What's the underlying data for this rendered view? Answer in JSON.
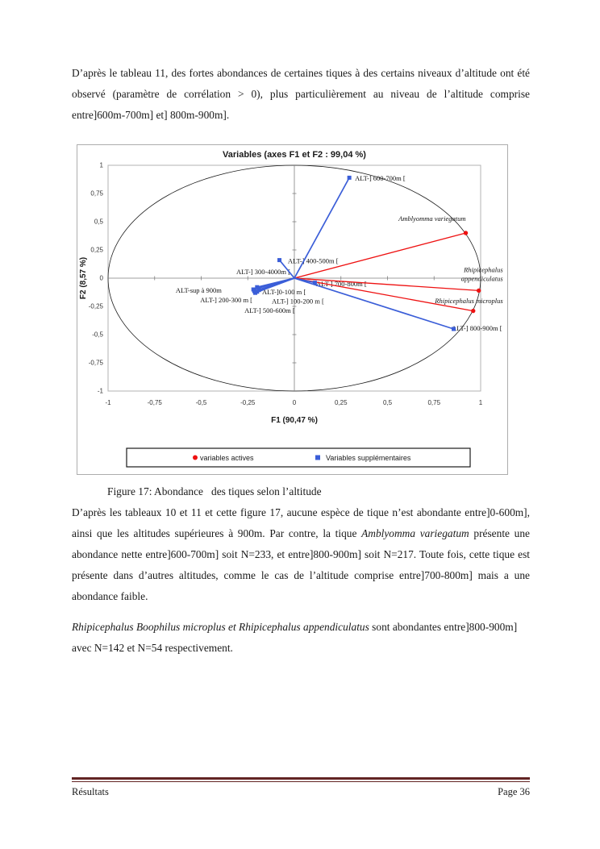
{
  "document": {
    "paragraphs": [
      {
        "runs": [
          {
            "t": "D’après le tableau 11, des fortes abondances de certaines tiques à des certains niveaux d’altitude ont été observé (paramètre de corrélation > 0), plus particulièrement au niveau de l’altitude comprise entre]600m-700m] et] 800m-900m].",
            "i": false
          }
        ]
      },
      {
        "runs": [
          {
            "t": "D’après les tableaux 10 et 11 et cette figure 17, aucune espèce de tique n’est abondante entre]0-600m], ainsi que les altitudes supérieures à 900m. Par contre, la tique ",
            "i": false
          },
          {
            "t": "Amblyomma variegatum",
            "i": true
          },
          {
            "t": " présente  une abondance nette entre]600-700m] soit N=233, et entre]800-900m] soit N=217. Toute fois, cette tique est présente dans d’autres altitudes, comme le cas de l’altitude comprise  entre]700-800m] mais a une abondance faible.",
            "i": false
          }
        ]
      },
      {
        "runs": [
          {
            "t": "Rhipicephalus Boophilus microplus et Rhipicephalus appendiculatus",
            "i": true
          },
          {
            "t": " sont abondantes entre]800-900m] avec N=142 et N=54 respectivement.",
            "i": false
          }
        ]
      }
    ],
    "caption": "Figure 17: Abondance   des tiques selon l’altitude"
  },
  "footer": {
    "left": "Résultats",
    "right": "Page 36"
  },
  "chart_data": {
    "type": "scatter",
    "subtype": "pca-correlation-circle",
    "title": "Variables (axes F1 et F2 : 99,04 %)",
    "xlabel": "F1 (90,47 %)",
    "ylabel": "F2 (8,57 %)",
    "xlim": [
      -1,
      1
    ],
    "ylim": [
      -1,
      1
    ],
    "x_tick_labels": [
      "-1",
      "-0,75",
      "-0,5",
      "-0,25",
      "0",
      "0,25",
      "0,5",
      "0,75",
      "1"
    ],
    "y_tick_labels": [
      "1",
      "0,75",
      "0,5",
      "0,25",
      "0",
      "-0,25",
      "-0,5",
      "-0,75",
      "-1"
    ],
    "unit_circle": true,
    "grid": false,
    "legend_position": "bottom",
    "series": [
      {
        "name": "variables actives",
        "marker": "circle",
        "color": "#ee1111",
        "points": [
          {
            "label": "Amblyomma variegatum",
            "italic": true,
            "x": 0.92,
            "y": 0.4,
            "lx": 0.92,
            "ly": 0.53,
            "anchor": "end"
          },
          {
            "label": [
              "Rhipicephalus",
              "appendiculatus"
            ],
            "italic": true,
            "x": 0.99,
            "y": -0.11,
            "lx": 1.12,
            "ly": 0.075,
            "anchor": "end"
          },
          {
            "label": "Rhipicephalus  microplus",
            "italic": true,
            "x": 0.96,
            "y": -0.29,
            "lx": 1.12,
            "ly": -0.2,
            "anchor": "end"
          }
        ]
      },
      {
        "name": "Variables supplémentaires",
        "marker": "square",
        "color": "#3b5ed8",
        "points": [
          {
            "label": "ALT-] 600-700m [",
            "x": 0.295,
            "y": 0.89,
            "lx": 0.325,
            "ly": 0.885,
            "anchor": "start"
          },
          {
            "label": "ALT-] 400-500m [",
            "x": -0.08,
            "y": 0.16,
            "lx": -0.035,
            "ly": 0.155,
            "anchor": "start"
          },
          {
            "label": "ALT-] 300-4000m [",
            "x": -0.2,
            "y": -0.08,
            "lx": -0.022,
            "ly": 0.057,
            "anchor": "end"
          },
          {
            "label": "ALT-sup à 900m",
            "x": -0.22,
            "y": -0.1,
            "lx": -0.39,
            "ly": -0.107,
            "anchor": "end"
          },
          {
            "label": "ALT-] 200-300 m [",
            "x": -0.215,
            "y": -0.115,
            "lx": -0.225,
            "ly": -0.193,
            "anchor": "end"
          },
          {
            "label": "ALT-]0-100 m [",
            "x": -0.19,
            "y": -0.105,
            "lx": -0.173,
            "ly": -0.121,
            "anchor": "start"
          },
          {
            "label": "ALT-] 100-200 m [",
            "x": -0.2,
            "y": -0.12,
            "lx": -0.121,
            "ly": -0.204,
            "anchor": "start"
          },
          {
            "label": "ALT-] 500-600m [",
            "x": -0.21,
            "y": -0.13,
            "lx": -0.268,
            "ly": -0.286,
            "anchor": "start"
          },
          {
            "label": "ALT-] 700-800m [",
            "x": 0.11,
            "y": -0.04,
            "lx": 0.117,
            "ly": -0.05,
            "anchor": "start"
          },
          {
            "label": "ALT-] 800-900m [",
            "x": 0.855,
            "y": -0.45,
            "lx": 0.844,
            "ly": -0.443,
            "anchor": "start"
          }
        ]
      }
    ]
  }
}
